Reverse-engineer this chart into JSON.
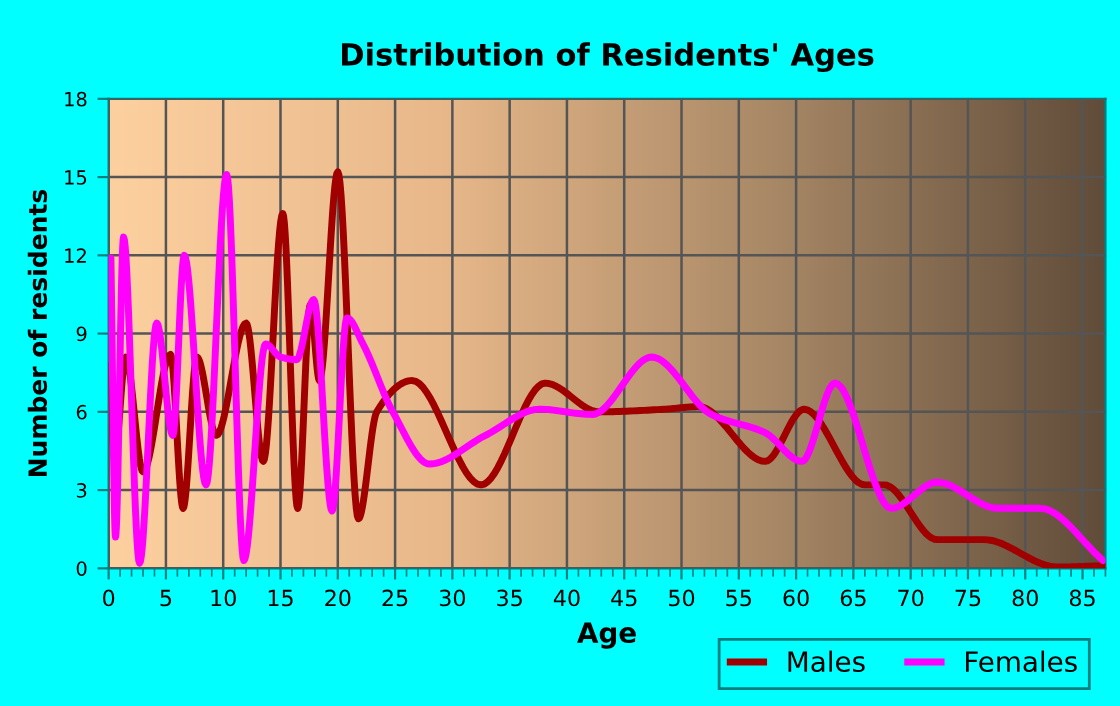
{
  "chart_data": {
    "type": "line",
    "title": "Distribution of Residents' Ages",
    "xlabel": "Age",
    "ylabel": "Number of residents",
    "xlim": [
      0,
      87
    ],
    "xticks": [
      0,
      5,
      10,
      15,
      20,
      25,
      30,
      35,
      40,
      45,
      50,
      55,
      60,
      65,
      70,
      75,
      80,
      85
    ],
    "ylim": [
      0,
      18
    ],
    "yticks": [
      0,
      3,
      6,
      9,
      12,
      15,
      18
    ],
    "grid": true,
    "legend": "bottom right",
    "marker": "none",
    "line_style": "solid",
    "series": [
      {
        "name": "Males",
        "color": "#a00000",
        "x": [
          0.2,
          0.5,
          1.5,
          3,
          5.4,
          6.5,
          7.7,
          9.4,
          12,
          13.5,
          15.2,
          16.5,
          17.6,
          18.4,
          20,
          21.8,
          23.4,
          26.5,
          32.5,
          38.1,
          42.8,
          48.5,
          51.5,
          57.3,
          60.7,
          66,
          67.7,
          72.3,
          76.4,
          82.8,
          86.8
        ],
        "values": [
          7.8,
          4.2,
          8.1,
          3.7,
          8.2,
          2.3,
          8.1,
          5.1,
          9.4,
          4.1,
          13.6,
          2.3,
          10.1,
          7.2,
          15.2,
          1.9,
          6,
          7.2,
          3.2,
          7.1,
          6,
          6.1,
          6.2,
          4.1,
          6.1,
          3.2,
          3.2,
          1.1,
          1.1,
          0.05,
          0.1
        ]
      },
      {
        "name": "Females",
        "color": "#ff00ff",
        "x": [
          0.2,
          0.6,
          1.3,
          2.7,
          4.2,
          5.6,
          6.6,
          8.5,
          10.3,
          11.8,
          13.7,
          15,
          16.4,
          17.9,
          19.5,
          20.8,
          22.2,
          24.8,
          28,
          32.9,
          37.6,
          42.2,
          47.4,
          52.6,
          57.3,
          60.5,
          63.4,
          68.3,
          72.3,
          77.6,
          81.3,
          86.8
        ],
        "values": [
          11.9,
          1.2,
          12.7,
          0.2,
          9.4,
          5.1,
          12,
          3.2,
          15.1,
          0.3,
          8.6,
          8.1,
          8,
          10.3,
          2.2,
          9.6,
          8.6,
          6,
          4,
          5.1,
          6.1,
          5.9,
          8.1,
          5.9,
          5.2,
          4.1,
          7.1,
          2.3,
          3.3,
          2.3,
          2.3,
          0.3
        ]
      }
    ]
  }
}
